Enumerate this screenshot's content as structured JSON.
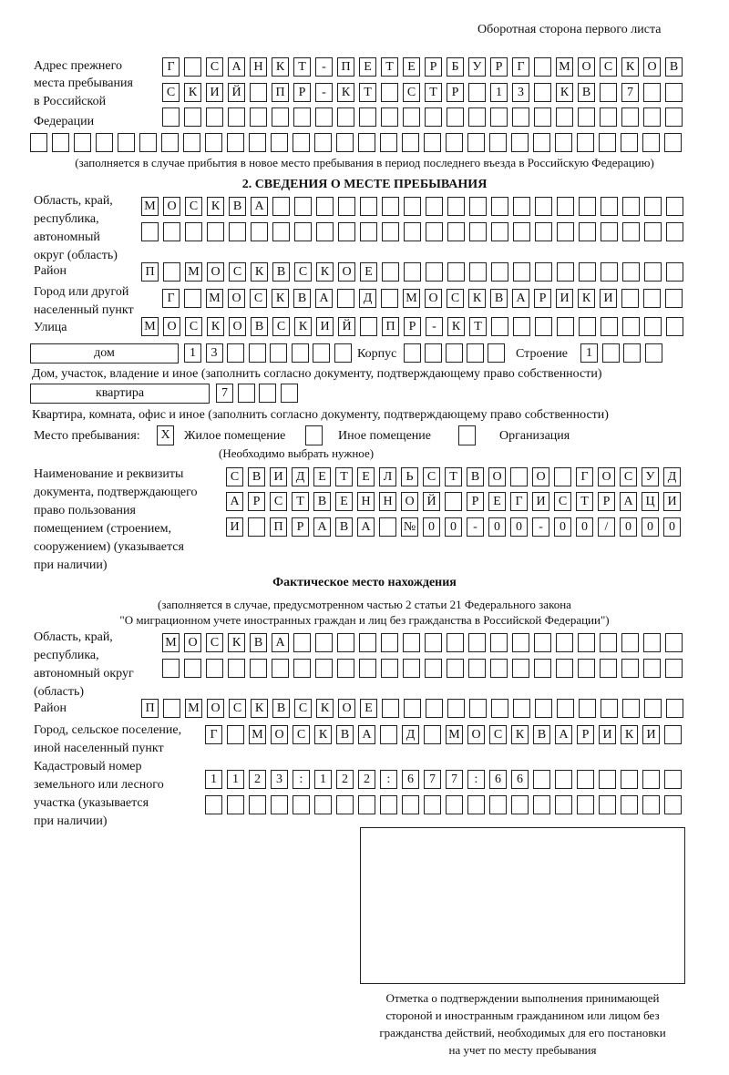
{
  "header": "Оборотная сторона первого листа",
  "previous_address": {
    "label": [
      "Адрес прежнего",
      "места пребывания",
      "в Российской",
      "Федерации"
    ],
    "rows": [
      [
        "Г",
        "",
        "С",
        "А",
        "Н",
        "К",
        "Т",
        "-",
        "П",
        "Е",
        "Т",
        "Е",
        "Р",
        "Б",
        "У",
        "Р",
        "Г",
        "",
        "М",
        "О",
        "С",
        "К",
        "О",
        "В"
      ],
      [
        "С",
        "К",
        "И",
        "Й",
        "",
        "П",
        "Р",
        "-",
        "К",
        "Т",
        "",
        "С",
        "Т",
        "Р",
        "",
        "1",
        "3",
        "",
        "К",
        "В",
        "",
        "7",
        "",
        ""
      ],
      [
        "",
        "",
        "",
        "",
        "",
        "",
        "",
        "",
        "",
        "",
        "",
        "",
        "",
        "",
        "",
        "",
        "",
        "",
        "",
        "",
        "",
        "",
        "",
        ""
      ],
      [
        "",
        "",
        "",
        "",
        "",
        "",
        "",
        "",
        "",
        "",
        "",
        "",
        "",
        "",
        "",
        "",
        "",
        "",
        "",
        "",
        "",
        "",
        "",
        "",
        "",
        "",
        "",
        "",
        "",
        ""
      ]
    ],
    "note": "(заполняется в случае прибытия в новое место пребывания в период последнего въезда в Российскую Федерацию)"
  },
  "section2": {
    "title": "2. СВЕДЕНИЯ О МЕСТЕ ПРЕБЫВАНИЯ",
    "region_label": [
      "Область, край,",
      "республика,",
      "автономный",
      "округ (область)"
    ],
    "region_rows": [
      [
        "М",
        "О",
        "С",
        "К",
        "В",
        "А",
        "",
        "",
        "",
        "",
        "",
        "",
        "",
        "",
        "",
        "",
        "",
        "",
        "",
        "",
        "",
        "",
        "",
        "",
        ""
      ],
      [
        "",
        "",
        "",
        "",
        "",
        "",
        "",
        "",
        "",
        "",
        "",
        "",
        "",
        "",
        "",
        "",
        "",
        "",
        "",
        "",
        "",
        "",
        "",
        "",
        ""
      ]
    ],
    "district_label": "Район",
    "district": [
      "П",
      "",
      "М",
      "О",
      "С",
      "К",
      "В",
      "С",
      "К",
      "О",
      "Е",
      "",
      "",
      "",
      "",
      "",
      "",
      "",
      "",
      "",
      "",
      "",
      "",
      "",
      ""
    ],
    "city_label": [
      "Город или другой",
      "населенный пункт"
    ],
    "city": [
      "Г",
      "",
      "М",
      "О",
      "С",
      "К",
      "В",
      "А",
      "",
      "Д",
      "",
      "М",
      "О",
      "С",
      "К",
      "В",
      "А",
      "Р",
      "И",
      "К",
      "И",
      "",
      "",
      ""
    ],
    "street_label": "Улица",
    "street": [
      "М",
      "О",
      "С",
      "К",
      "О",
      "В",
      "С",
      "К",
      "И",
      "Й",
      "",
      "П",
      "Р",
      "-",
      "К",
      "Т",
      "",
      "",
      "",
      "",
      "",
      "",
      "",
      "",
      ""
    ],
    "house_type": "дом",
    "house": [
      "1",
      "3",
      "",
      "",
      "",
      "",
      "",
      ""
    ],
    "korpus_label": "Корпус",
    "korpus": [
      "",
      "",
      "",
      "",
      ""
    ],
    "building_label": "Строение",
    "building": [
      "1",
      "",
      "",
      ""
    ],
    "house_note": "Дом, участок, владение и иное (заполнить согласно документу, подтверждающему право собственности)",
    "apartment_type": "квартира",
    "apartment": [
      "7",
      "",
      "",
      ""
    ],
    "apartment_note": "Квартира, комната, офис и иное (заполнить согласно документу, подтверждающему право собственности)",
    "place_label": "Место пребывания:",
    "place_options": [
      {
        "label": "Жилое помещение",
        "mark": "X"
      },
      {
        "label": "Иное помещение",
        "mark": ""
      },
      {
        "label": "Организация",
        "mark": ""
      }
    ],
    "place_hint": "(Необходимо выбрать нужное)",
    "document_label": [
      "Наименование и реквизиты",
      "документа, подтверждающего",
      "право пользования",
      "помещением (строением,",
      "сооружением) (указывается",
      "при наличии)"
    ],
    "document_rows": [
      [
        "С",
        "В",
        "И",
        "Д",
        "Е",
        "Т",
        "Е",
        "Л",
        "Ь",
        "С",
        "Т",
        "В",
        "О",
        "",
        "О",
        "",
        "Г",
        "О",
        "С",
        "У",
        "Д"
      ],
      [
        "А",
        "Р",
        "С",
        "Т",
        "В",
        "Е",
        "Н",
        "Н",
        "О",
        "Й",
        "",
        "Р",
        "Е",
        "Г",
        "И",
        "С",
        "Т",
        "Р",
        "А",
        "Ц",
        "И"
      ],
      [
        "И",
        "",
        "П",
        "Р",
        "А",
        "В",
        "А",
        "",
        "№",
        "0",
        "0",
        "-",
        "0",
        "0",
        "-",
        "0",
        "0",
        "/",
        "0",
        "0",
        "0"
      ]
    ]
  },
  "actual": {
    "title": "Фактическое место нахождения",
    "note": [
      "(заполняется в случае, предусмотренном частью 2 статьи 21 Федерального закона",
      "\"О миграционном учете иностранных граждан и лиц без гражданства в Российской Федерации\")"
    ],
    "region_label": [
      "Область, край,",
      "республика,",
      "автономный округ",
      "(область)"
    ],
    "region_rows": [
      [
        "М",
        "О",
        "С",
        "К",
        "В",
        "А",
        "",
        "",
        "",
        "",
        "",
        "",
        "",
        "",
        "",
        "",
        "",
        "",
        "",
        "",
        "",
        "",
        "",
        ""
      ],
      [
        "",
        "",
        "",
        "",
        "",
        "",
        "",
        "",
        "",
        "",
        "",
        "",
        "",
        "",
        "",
        "",
        "",
        "",
        "",
        "",
        "",
        "",
        "",
        ""
      ]
    ],
    "district_label": "Район",
    "district": [
      "П",
      "",
      "М",
      "О",
      "С",
      "К",
      "В",
      "С",
      "К",
      "О",
      "Е",
      "",
      "",
      "",
      "",
      "",
      "",
      "",
      "",
      "",
      "",
      "",
      "",
      "",
      ""
    ],
    "city_label": [
      "Город, сельское поселение,",
      "иной населенный пункт"
    ],
    "city": [
      "Г",
      "",
      "М",
      "О",
      "С",
      "К",
      "В",
      "А",
      "",
      "Д",
      "",
      "М",
      "О",
      "С",
      "К",
      "В",
      "А",
      "Р",
      "И",
      "К",
      "И",
      ""
    ],
    "cadastral_label": [
      "Кадастровый номер",
      "земельного или лесного",
      "участка (указывается",
      "при наличии)"
    ],
    "cadastral_rows": [
      [
        "1",
        "1",
        "2",
        "3",
        ":",
        "1",
        "2",
        "2",
        ":",
        "6",
        "7",
        "7",
        ":",
        "6",
        "6",
        "",
        "",
        "",
        "",
        "",
        "",
        ""
      ],
      [
        "",
        "",
        "",
        "",
        "",
        "",
        "",
        "",
        "",
        "",
        "",
        "",
        "",
        "",
        "",
        "",
        "",
        "",
        "",
        "",
        "",
        ""
      ]
    ]
  },
  "stamp_caption": [
    "Отметка о подтверждении выполнения принимающей",
    "стороной и иностранным гражданином или лицом без",
    "гражданства действий, необходимых для его постановки",
    "на учет по месту пребывания"
  ]
}
